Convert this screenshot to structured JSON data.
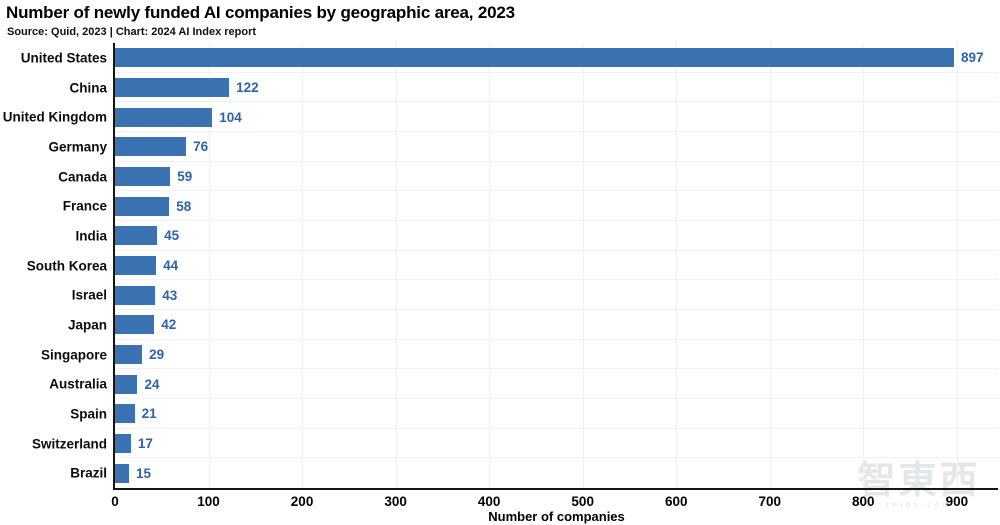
{
  "header": {
    "title": "Number of newly funded AI companies by geographic area, 2023",
    "source": "Source: Quid, 2023 | Chart: 2024 AI Index report"
  },
  "chart_data": {
    "type": "bar",
    "orientation": "horizontal",
    "title": "Number of newly funded AI companies by geographic area, 2023",
    "xlabel": "Number of companies",
    "categories": [
      "United States",
      "China",
      "United Kingdom",
      "Germany",
      "Canada",
      "France",
      "India",
      "South Korea",
      "Israel",
      "Japan",
      "Singapore",
      "Australia",
      "Spain",
      "Switzerland",
      "Brazil"
    ],
    "values": [
      897,
      122,
      104,
      76,
      59,
      58,
      45,
      44,
      43,
      42,
      29,
      24,
      21,
      17,
      15
    ],
    "xticks": [
      0,
      100,
      200,
      300,
      400,
      500,
      600,
      700,
      800,
      900
    ],
    "xlim": [
      0,
      944
    ],
    "grid": true,
    "legend": null,
    "colors": {
      "bar": "#3a72b2",
      "value_label": "#2e63a7",
      "axis": "#151515",
      "gridline": "#f1f1f1"
    }
  },
  "watermark": {
    "text": "智東西",
    "subtext": "zhidx.com"
  }
}
